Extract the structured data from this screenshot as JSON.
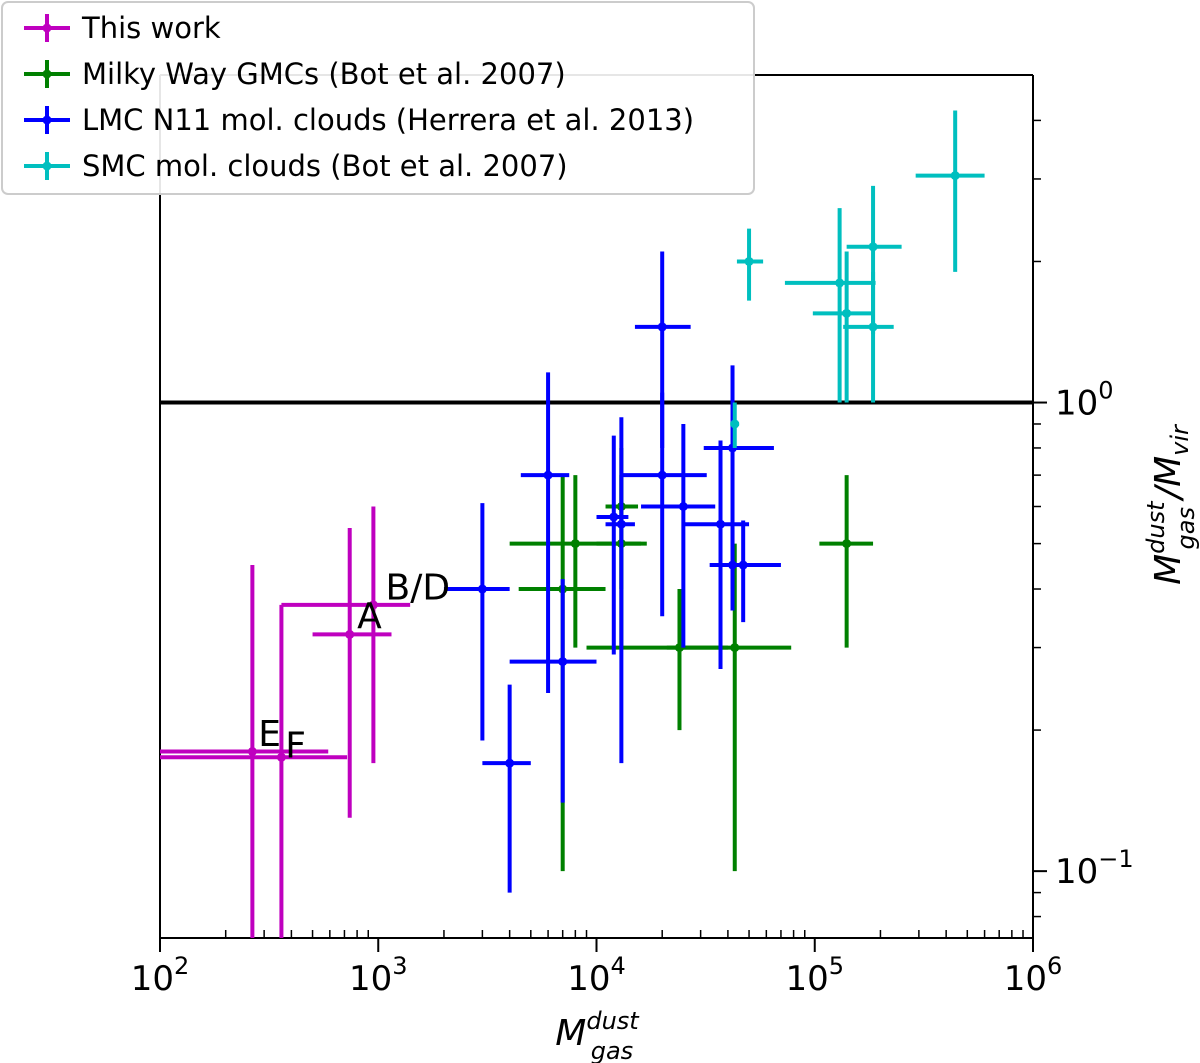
{
  "chart_data": {
    "type": "scatter",
    "xscale": "log",
    "yscale": "log",
    "xlim": [
      100,
      1000000
    ],
    "ylim": [
      0.072,
      5.0
    ],
    "xlabel": {
      "base": "M",
      "sup": "dust",
      "sub": "gas"
    },
    "ylabel": {
      "base1": "M",
      "sup": "dust",
      "sub": "gas",
      "sep": "/",
      "base2": "M",
      "sub2": "vir"
    },
    "xticks": [
      {
        "value": 100,
        "base": "10",
        "exp": "2"
      },
      {
        "value": 1000,
        "base": "10",
        "exp": "3"
      },
      {
        "value": 10000,
        "base": "10",
        "exp": "4"
      },
      {
        "value": 100000,
        "base": "10",
        "exp": "5"
      },
      {
        "value": 1000000,
        "base": "10",
        "exp": "6"
      }
    ],
    "yticks": [
      {
        "value": 1,
        "base": "10",
        "exp": "0"
      },
      {
        "value": 0.1,
        "base": "10",
        "exp": "−1"
      }
    ],
    "reference_line": {
      "y": 1.0
    },
    "series": [
      {
        "name": "This work",
        "color": "#bf00bf",
        "points": [
          {
            "x": 740,
            "y": 0.32,
            "xerr": [
              500,
              1150
            ],
            "yerr": [
              0.13,
              0.54
            ]
          },
          {
            "x": 950,
            "y": 0.37,
            "xerr": [
              360,
              1400
            ],
            "yerr": [
              0.17,
              0.6
            ]
          },
          {
            "x": 265,
            "y": 0.18,
            "xerr": [
              100,
              590
            ],
            "yerr": [
              0.04,
              0.45
            ]
          },
          {
            "x": 360,
            "y": 0.175,
            "xerr": [
              100,
              720
            ],
            "yerr": [
              0.06,
              0.37
            ]
          }
        ]
      },
      {
        "name": "Milky Way GMCs (Bot et al. 2007)",
        "color": "#008000",
        "points": [
          {
            "x": 7000,
            "y": 0.4,
            "xerr": [
              4400,
              11000
            ],
            "yerr": [
              0.1,
              0.7
            ]
          },
          {
            "x": 8000,
            "y": 0.5,
            "xerr": [
              4000,
              16000
            ],
            "yerr": [
              0.3,
              0.7
            ]
          },
          {
            "x": 13000,
            "y": 0.5,
            "xerr": [
              10000,
              17000
            ],
            "yerr": [
              0.3,
              0.7
            ]
          },
          {
            "x": 13000,
            "y": 0.6,
            "xerr": [
              11000,
              15500
            ],
            "yerr": [
              0.4,
              0.8
            ]
          },
          {
            "x": 24000,
            "y": 0.3,
            "xerr": [
              9000,
              40000
            ],
            "yerr": [
              0.2,
              0.4
            ]
          },
          {
            "x": 43000,
            "y": 0.3,
            "xerr": [
              21000,
              78000
            ],
            "yerr": [
              0.1,
              0.5
            ]
          },
          {
            "x": 140000,
            "y": 0.5,
            "xerr": [
              105000,
              185000
            ],
            "yerr": [
              0.3,
              0.7
            ]
          }
        ]
      },
      {
        "name": "LMC N11 mol. clouds (Herrera et al. 2013)",
        "color": "#0000ff",
        "points": [
          {
            "x": 3000,
            "y": 0.4,
            "xerr": [
              2000,
              4000
            ],
            "yerr": [
              0.19,
              0.61
            ]
          },
          {
            "x": 4000,
            "y": 0.17,
            "xerr": [
              3000,
              5000
            ],
            "yerr": [
              0.09,
              0.25
            ]
          },
          {
            "x": 6000,
            "y": 0.7,
            "xerr": [
              4500,
              7500
            ],
            "yerr": [
              0.24,
              1.16
            ]
          },
          {
            "x": 7000,
            "y": 0.28,
            "xerr": [
              4000,
              10000
            ],
            "yerr": [
              0.14,
              0.42
            ]
          },
          {
            "x": 12000,
            "y": 0.57,
            "xerr": [
              10000,
              14000
            ],
            "yerr": [
              0.29,
              0.85
            ]
          },
          {
            "x": 13000,
            "y": 0.55,
            "xerr": [
              11000,
              15000
            ],
            "yerr": [
              0.17,
              0.93
            ]
          },
          {
            "x": 20000,
            "y": 0.7,
            "xerr": [
              13000,
              32000
            ],
            "yerr": [
              0.35,
              1.05
            ]
          },
          {
            "x": 20000,
            "y": 1.45,
            "xerr": [
              15000,
              27000
            ],
            "yerr": [
              0.8,
              2.1
            ]
          },
          {
            "x": 25000,
            "y": 0.6,
            "xerr": [
              16000,
              35000
            ],
            "yerr": [
              0.3,
              0.9
            ]
          },
          {
            "x": 37000,
            "y": 0.55,
            "xerr": [
              25000,
              50000
            ],
            "yerr": [
              0.27,
              0.83
            ]
          },
          {
            "x": 42000,
            "y": 0.8,
            "xerr": [
              31000,
              65000
            ],
            "yerr": [
              0.4,
              1.2
            ]
          },
          {
            "x": 42000,
            "y": 0.45,
            "xerr": [
              33000,
              52000
            ],
            "yerr": [
              0.36,
              0.54
            ]
          },
          {
            "x": 47000,
            "y": 0.45,
            "xerr": [
              36000,
              70000
            ],
            "yerr": [
              0.34,
              0.56
            ]
          }
        ]
      },
      {
        "name": "SMC mol. clouds (Bot et al. 2007)",
        "color": "#00bfbf",
        "points": [
          {
            "x": 43000,
            "y": 0.9,
            "xerr": [
              41000,
              45000
            ],
            "yerr": [
              0.8,
              1.0
            ]
          },
          {
            "x": 50000,
            "y": 2.0,
            "xerr": [
              44000,
              58000
            ],
            "yerr": [
              1.65,
              2.35
            ]
          },
          {
            "x": 130000,
            "y": 1.8,
            "xerr": [
              73000,
              190000
            ],
            "yerr": [
              1.0,
              2.6
            ]
          },
          {
            "x": 140000,
            "y": 1.55,
            "xerr": [
              98000,
              185000
            ],
            "yerr": [
              1.0,
              2.1
            ]
          },
          {
            "x": 185000,
            "y": 2.15,
            "xerr": [
              140000,
              250000
            ],
            "yerr": [
              1.4,
              2.9
            ]
          },
          {
            "x": 185000,
            "y": 1.45,
            "xerr": [
              135000,
              230000
            ],
            "yerr": [
              1.0,
              1.9
            ]
          },
          {
            "x": 440000,
            "y": 3.05,
            "xerr": [
              290000,
              600000
            ],
            "yerr": [
              1.9,
              4.2
            ]
          }
        ]
      }
    ],
    "annotations": [
      {
        "text": "A",
        "x": 800,
        "y": 0.33
      },
      {
        "text": "B/D",
        "x": 1080,
        "y": 0.38
      },
      {
        "text": "E",
        "x": 282,
        "y": 0.185
      },
      {
        "text": "F",
        "x": 375,
        "y": 0.175
      }
    ],
    "legend": {
      "placement": "upper-left"
    }
  }
}
